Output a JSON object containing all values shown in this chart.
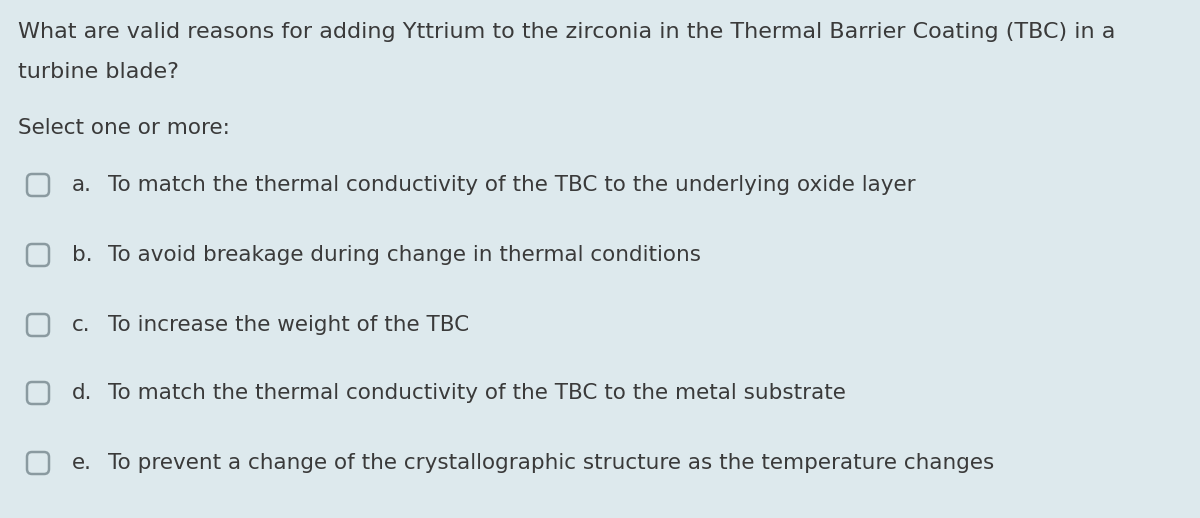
{
  "background_color": "#dde9ed",
  "question_text_line1": "What are valid reasons for adding Yttrium to the zirconia in the Thermal Barrier Coating (TBC) in a",
  "question_text_line2": "turbine blade?",
  "select_text": "Select one or more:",
  "options": [
    {
      "label": "a.",
      "text": "To match the thermal conductivity of the TBC to the underlying oxide layer"
    },
    {
      "label": "b.",
      "text": "To avoid breakage during change in thermal conditions"
    },
    {
      "label": "c.",
      "text": "To increase the weight of the TBC"
    },
    {
      "label": "d.",
      "text": "To match the thermal conductivity of the TBC to the metal substrate"
    },
    {
      "label": "e.",
      "text": "To prevent a change of the crystallographic structure as the temperature changes"
    }
  ],
  "text_color": "#3a3a3a",
  "box_color": "#8a9aa0",
  "font_size_question": 16.0,
  "font_size_select": 15.5,
  "font_size_options": 15.5,
  "fig_width": 12.0,
  "fig_height": 5.18
}
